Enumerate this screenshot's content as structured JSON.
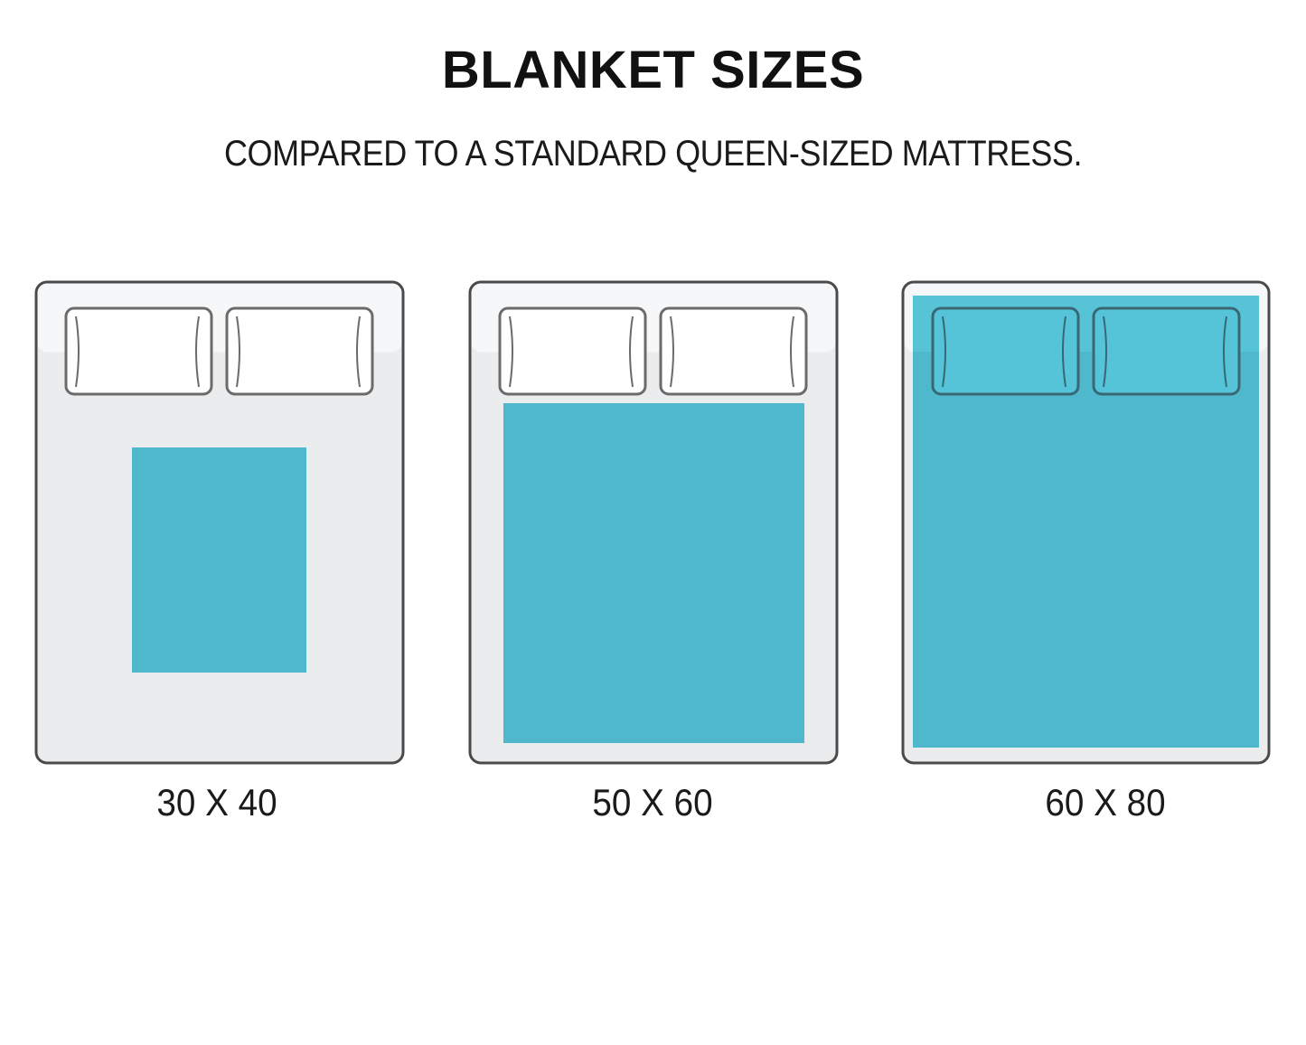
{
  "title": "BLANKET SIZES",
  "subtitle": "COMPARED TO A STANDARD QUEEN-SIZED MATTRESS.",
  "colors": {
    "blanket": "#4fb8cc",
    "mattress_top": "#f5f6f7",
    "mattress": "#ebecee",
    "outline": "#555555"
  },
  "beds": [
    {
      "label": "30 X 40"
    },
    {
      "label": "50 X 60"
    },
    {
      "label": "60 X 80"
    }
  ]
}
